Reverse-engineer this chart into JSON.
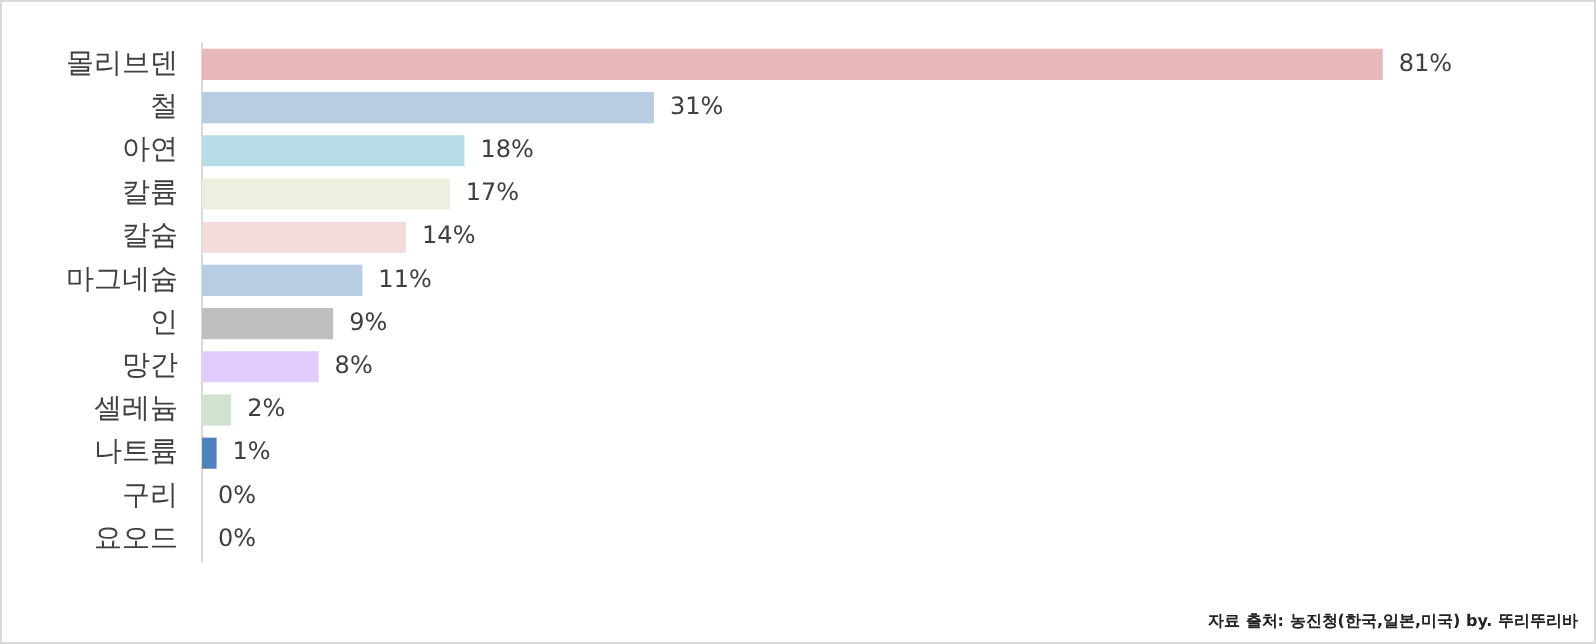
{
  "chart_data": {
    "type": "bar",
    "orientation": "horizontal",
    "categories": [
      "몰리브덴",
      "철",
      "아연",
      "칼륨",
      "칼슘",
      "마그네슘",
      "인",
      "망간",
      "셀레늄",
      "나트륨",
      "구리",
      "요오드"
    ],
    "values": [
      81,
      31,
      18,
      17,
      14,
      11,
      9,
      8,
      2,
      1,
      0,
      0
    ],
    "colors": [
      "#e6b8b7",
      "#b8cce4",
      "#b7dde8",
      "#ebf1de",
      "#f2dcdb",
      "#b8cce4",
      "#bfbfbf",
      "#e0ccff",
      "#d0e2d0",
      "#4f81bd",
      "#4f81bd",
      "#c0c0c0"
    ],
    "value_labels": [
      "81%",
      "31%",
      "18%",
      "17%",
      "14%",
      "11%",
      "9%",
      "8%",
      "2%",
      "1%",
      "0%",
      "0%"
    ],
    "annotations": [
      "자료 출처: 농진청(한국,일본,미국) by. 뚜리뚜리바"
    ],
    "grid": false,
    "legend": false
  }
}
